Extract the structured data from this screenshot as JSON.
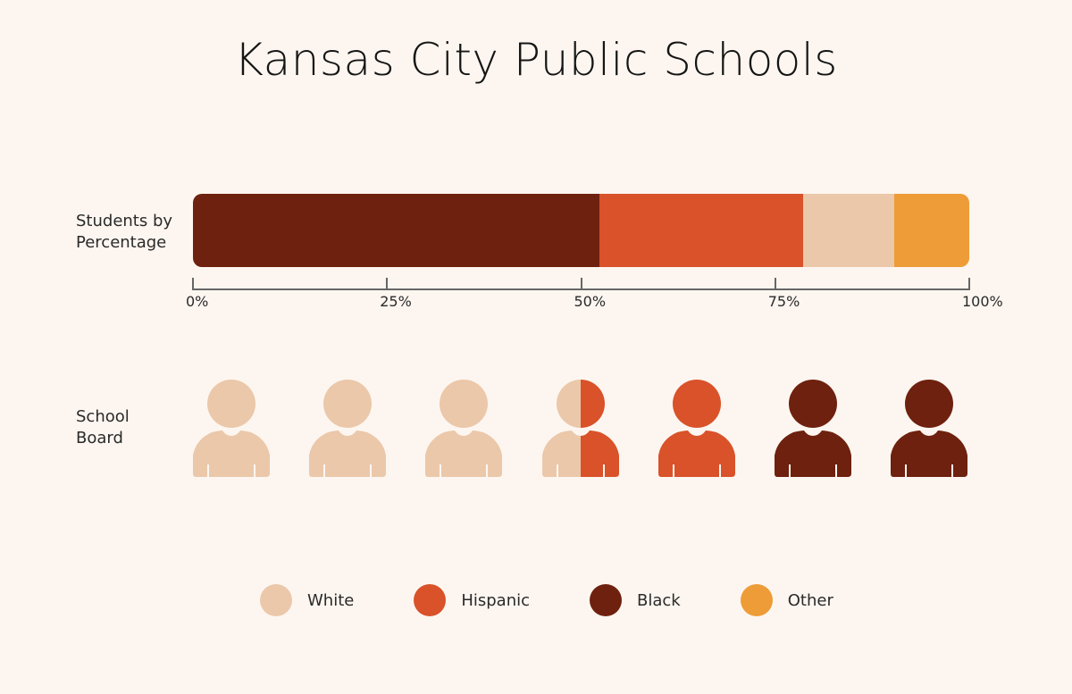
{
  "title": "Kansas City Public Schools",
  "colors": {
    "white": "#ebc8aa",
    "hispanic": "#d9522a",
    "black": "#6e210e",
    "other": "#ee9c37",
    "background": "#fdf6f0"
  },
  "rows": {
    "students_label": "Students by Percentage",
    "board_label": "School Board"
  },
  "axis": {
    "ticks": [
      "0%",
      "25%",
      "50%",
      "75%",
      "100%"
    ]
  },
  "legend": [
    {
      "label": "White",
      "color": "#ebc8aa"
    },
    {
      "label": "Hispanic",
      "color": "#d9522a"
    },
    {
      "label": "Black",
      "color": "#6e210e"
    },
    {
      "label": "Other",
      "color": "#ee9c37"
    }
  ],
  "chart_data": [
    {
      "type": "bar",
      "orientation": "horizontal-stacked",
      "title": "Kansas City Public Schools",
      "categories": [
        "Students by Percentage"
      ],
      "series": [
        {
          "name": "Black",
          "values": [
            52.4
          ],
          "color": "#6e210e"
        },
        {
          "name": "Hispanic",
          "values": [
            26.2
          ],
          "color": "#d9522a"
        },
        {
          "name": "White",
          "values": [
            11.7
          ],
          "color": "#ebc8aa"
        },
        {
          "name": "Other",
          "values": [
            9.7
          ],
          "color": "#ee9c37"
        }
      ],
      "xlabel": "",
      "ylabel": "",
      "xlim": [
        0,
        100
      ],
      "xticks": [
        "0%",
        "25%",
        "50%",
        "75%",
        "100%"
      ],
      "grid": false,
      "legend_position": "bottom"
    },
    {
      "type": "pictogram",
      "title": "School Board",
      "total_members": 7,
      "members": [
        "White",
        "White",
        "White",
        "White/Hispanic",
        "Hispanic",
        "Black",
        "Black"
      ],
      "counts": {
        "White": 3.5,
        "Hispanic": 1.5,
        "Black": 2,
        "Other": 0
      }
    }
  ],
  "board": [
    {
      "left": "#ebc8aa",
      "right": "#ebc8aa",
      "name": "White"
    },
    {
      "left": "#ebc8aa",
      "right": "#ebc8aa",
      "name": "White"
    },
    {
      "left": "#ebc8aa",
      "right": "#ebc8aa",
      "name": "White"
    },
    {
      "left": "#ebc8aa",
      "right": "#d9522a",
      "name": "White/Hispanic"
    },
    {
      "left": "#d9522a",
      "right": "#d9522a",
      "name": "Hispanic"
    },
    {
      "left": "#6e210e",
      "right": "#6e210e",
      "name": "Black"
    },
    {
      "left": "#6e210e",
      "right": "#6e210e",
      "name": "Black"
    }
  ]
}
